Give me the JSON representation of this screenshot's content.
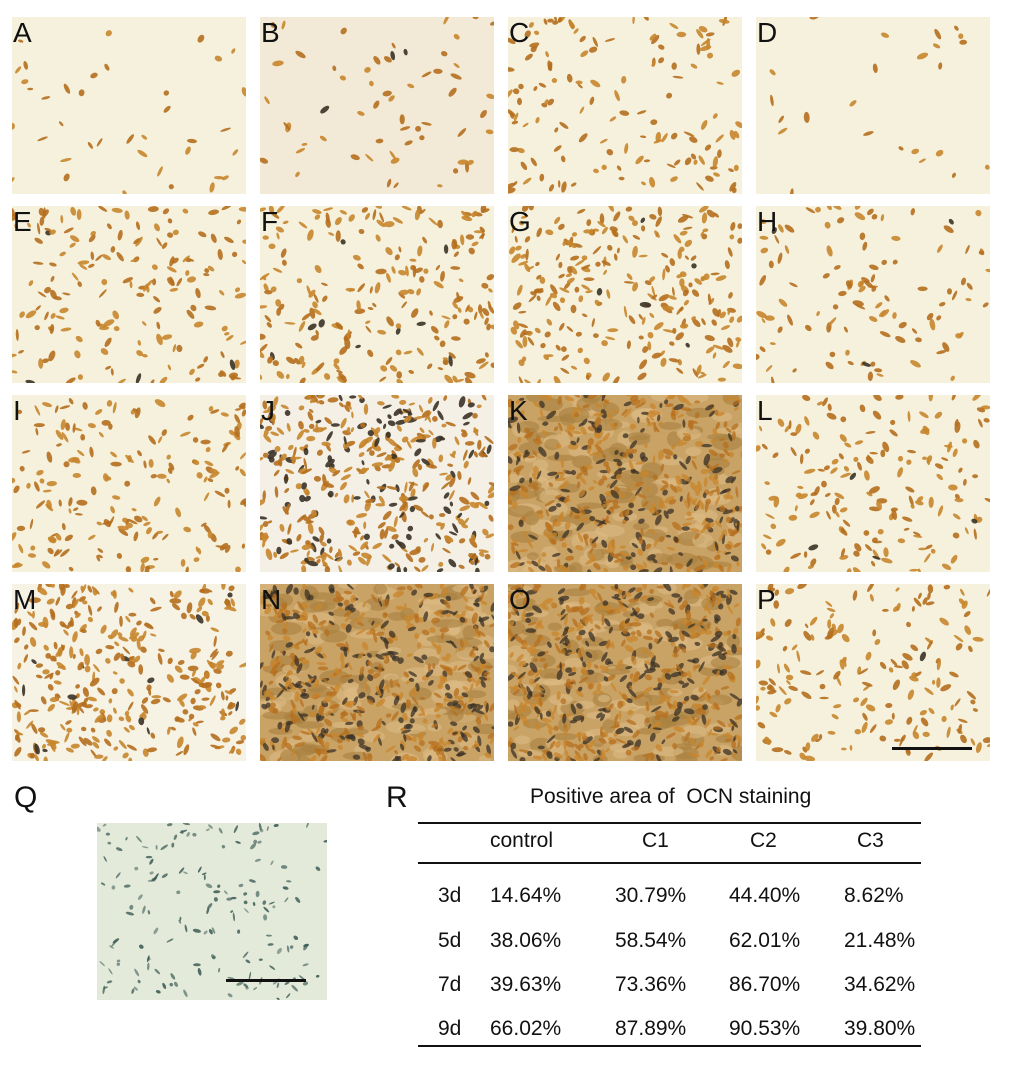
{
  "figure": {
    "panel_labels": [
      "A",
      "B",
      "C",
      "D",
      "E",
      "F",
      "G",
      "H",
      "I",
      "J",
      "K",
      "L",
      "M",
      "N",
      "O",
      "P"
    ],
    "panel_q_label": "Q",
    "panel_r_label": "R"
  },
  "table": {
    "title": "Positive area of  OCN staining",
    "columns": [
      "",
      "control",
      "C1",
      "C2",
      "C3"
    ],
    "rows": [
      {
        "day": "3d",
        "values": [
          "14.64%",
          "30.79%",
          "44.40%",
          "8.62%"
        ]
      },
      {
        "day": "5d",
        "values": [
          "38.06%",
          "58.54%",
          "62.01%",
          "21.48%"
        ]
      },
      {
        "day": "7d",
        "values": [
          "39.63%",
          "73.36%",
          "86.70%",
          "34.62%"
        ]
      },
      {
        "day": "9d",
        "values": [
          "66.02%",
          "87.89%",
          "90.53%",
          "39.80%"
        ]
      }
    ]
  },
  "colors": {
    "background_pale": "#f6f1dd",
    "cell_orange": "#c8862c",
    "dense_tan": "#c9a366",
    "dark_stain": "#3b3226",
    "q_background": "#e4ead9",
    "q_cell": "#3a5a55"
  }
}
